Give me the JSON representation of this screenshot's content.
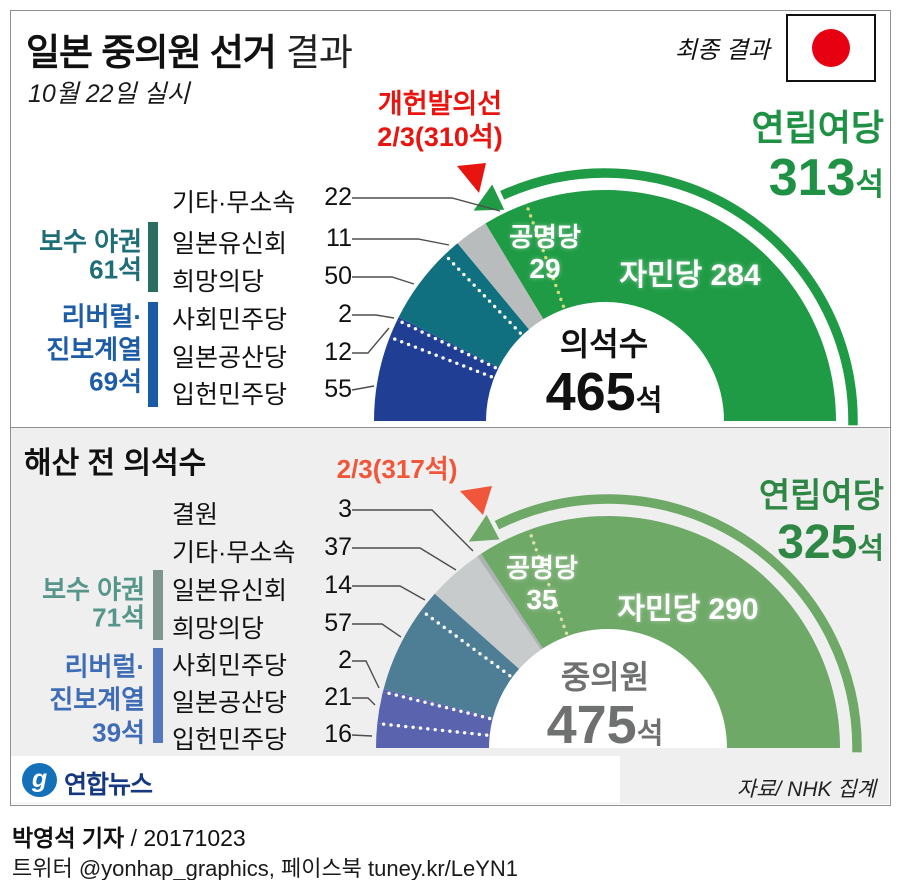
{
  "header": {
    "title_bold": "일본 중의원 선거",
    "title_light": "결과",
    "subtitle": "10월 22일 실시",
    "final_label": "최종 결과",
    "flag_red": "#e60012"
  },
  "section2_title": "해산 전 의석수",
  "chart_data": [
    {
      "type": "donut-semi",
      "center_title": "의석수",
      "total": 465,
      "total_suffix": "석",
      "center_color": "#111111",
      "coalition_label": "연립여당",
      "coalition_seats": "313",
      "coalition_suffix": "석",
      "coalition_color": "#1e9145",
      "arrow_color": "#1f9b45",
      "threshold_label": "개헌발의선",
      "threshold_value": "2/3(310석)",
      "threshold_seats": 310,
      "threshold_color": "#e8140f",
      "sep_white": "#ffffff",
      "sep_yellow": "#d3dc78",
      "komeito_label": "공명당",
      "komeito_value": "29",
      "ldp_label": "자민당 284",
      "segments": [
        {
          "party": "입헌민주당",
          "seats": 55,
          "color": "#203f94",
          "sep_after": "white"
        },
        {
          "party": "일본공산당",
          "seats": 12,
          "color": "#203f94",
          "sep_after": "white"
        },
        {
          "party": "사회민주당",
          "seats": 2,
          "color": "#203f94",
          "sep_after": null
        },
        {
          "party": "희망의당",
          "seats": 50,
          "color": "#11707f",
          "sep_after": "white"
        },
        {
          "party": "일본유신회",
          "seats": 11,
          "color": "#11707f",
          "sep_after": null
        },
        {
          "party": "기타·무소속",
          "seats": 22,
          "color": "#b9bcbc",
          "sep_after": null
        },
        {
          "party": "공명당",
          "seats": 29,
          "color": "#1f9b45",
          "sep_after": "yellow"
        },
        {
          "party": "자민당",
          "seats": 284,
          "color": "#1f9b45",
          "sep_after": null
        }
      ],
      "rows": [
        {
          "label": "기타·무소속",
          "value": "22"
        },
        {
          "label": "일본유신회",
          "value": "11"
        },
        {
          "label": "희망의당",
          "value": "50"
        },
        {
          "label": "사회민주당",
          "value": "2"
        },
        {
          "label": "일본공산당",
          "value": "12"
        },
        {
          "label": "입헌민주당",
          "value": "55"
        }
      ],
      "groups": [
        {
          "label_lines": [
            "보수 야권",
            "61석"
          ],
          "color": "#1e6e78",
          "bar_color": "#2b6e60"
        },
        {
          "label_lines": [
            "리버럴·",
            "진보계열",
            "69석"
          ],
          "color": "#1d5ca6",
          "bar_color": "#1b5aa5"
        }
      ]
    },
    {
      "type": "donut-semi",
      "center_title": "중의원",
      "total": 475,
      "total_suffix": "석",
      "center_color": "#6f7070",
      "coalition_label": "연립여당",
      "coalition_seats": "325",
      "coalition_suffix": "석",
      "coalition_color": "#2f8746",
      "arrow_color": "#6fa968",
      "threshold_label": "",
      "threshold_value": "2/3(317석)",
      "threshold_seats": 317,
      "threshold_color": "#f0563a",
      "sep_white": "#ffffff",
      "sep_yellow": "#dde3a8",
      "komeito_label": "공명당",
      "komeito_value": "35",
      "ldp_label": "자민당 290",
      "segments": [
        {
          "party": "입헌민주당",
          "seats": 16,
          "color": "#5a63ae",
          "sep_after": "white"
        },
        {
          "party": "일본공산당",
          "seats": 21,
          "color": "#5a63ae",
          "sep_after": "white"
        },
        {
          "party": "사회민주당",
          "seats": 2,
          "color": "#5a63ae",
          "sep_after": null
        },
        {
          "party": "희망의당",
          "seats": 57,
          "color": "#4e7d96",
          "sep_after": "white"
        },
        {
          "party": "일본유신회",
          "seats": 14,
          "color": "#4e7d96",
          "sep_after": null
        },
        {
          "party": "기타·무소속",
          "seats": 37,
          "color": "#c8cbcb",
          "sep_after": null
        },
        {
          "party": "결원",
          "seats": 3,
          "color": "#adb2b2",
          "sep_after": null
        },
        {
          "party": "공명당",
          "seats": 35,
          "color": "#6fa968",
          "sep_after": "yellow"
        },
        {
          "party": "자민당",
          "seats": 290,
          "color": "#6fa968",
          "sep_after": null
        }
      ],
      "rows": [
        {
          "label": "결원",
          "value": "3"
        },
        {
          "label": "기타·무소속",
          "value": "37"
        },
        {
          "label": "일본유신회",
          "value": "14"
        },
        {
          "label": "희망의당",
          "value": "57"
        },
        {
          "label": "사회민주당",
          "value": "2"
        },
        {
          "label": "일본공산당",
          "value": "21"
        },
        {
          "label": "입헌민주당",
          "value": "16"
        }
      ],
      "groups": [
        {
          "label_lines": [
            "보수 야권",
            "71석"
          ],
          "color": "#55958a",
          "bar_color": "#7e968e"
        },
        {
          "label_lines": [
            "리버럴·",
            "진보계열",
            "39석"
          ],
          "color": "#3e6cb5",
          "bar_color": "#5577c0"
        }
      ]
    }
  ],
  "footer": {
    "logo_glyph": "g",
    "logo_circle_color": "#1470b8",
    "logo_text": "연합뉴스",
    "logo_text_color": "#16387f",
    "source": "자료/ NHK 집계",
    "credit_bold": "박영석 기자",
    "credit_rest": " / 20171023",
    "sns": "트위터 @yonhap_graphics, 페이스북 tuney.kr/LeYN1"
  }
}
